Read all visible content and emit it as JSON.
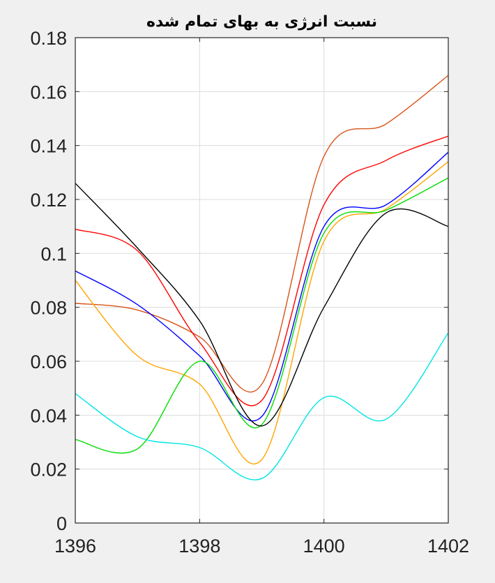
{
  "chart_data": {
    "type": "line",
    "title": "نسبت انرژی به بهای تمام شده",
    "xlabel": "",
    "ylabel": "",
    "xlim": [
      1396,
      1402
    ],
    "ylim": [
      0,
      0.18
    ],
    "x_ticks": [
      1396,
      1398,
      1400,
      1402
    ],
    "y_ticks": [
      0,
      0.02,
      0.04,
      0.06,
      0.08,
      0.1,
      0.12,
      0.14,
      0.16,
      0.18
    ],
    "x_tick_labels": [
      "1396",
      "1398",
      "1400",
      "1402"
    ],
    "y_tick_labels": [
      "0",
      "0.02",
      "0.04",
      "0.06",
      "0.08",
      "0.1",
      "0.12",
      "0.14",
      "0.16",
      "0.18"
    ],
    "grid": true,
    "legend": "none",
    "series": [
      {
        "color": "#d95319",
        "x": [
          1396,
          1397,
          1398,
          1399,
          1400,
          1401,
          1402
        ],
        "y": [
          0.0815,
          0.079,
          0.069,
          0.0515,
          0.136,
          0.148,
          0.166
        ]
      },
      {
        "color": "#ff0000",
        "x": [
          1396,
          1397,
          1398,
          1399,
          1400,
          1401,
          1402
        ],
        "y": [
          0.109,
          0.101,
          0.067,
          0.0455,
          0.118,
          0.1345,
          0.1435
        ]
      },
      {
        "color": "#0000ff",
        "x": [
          1396,
          1397,
          1398,
          1399,
          1400,
          1401,
          1402
        ],
        "y": [
          0.0935,
          0.081,
          0.062,
          0.0395,
          0.11,
          0.118,
          0.1375
        ]
      },
      {
        "color": "#ffa500",
        "x": [
          1396,
          1397,
          1398,
          1399,
          1400,
          1401,
          1402
        ],
        "y": [
          0.09,
          0.062,
          0.0515,
          0.0235,
          0.1045,
          0.1165,
          0.134
        ]
      },
      {
        "color": "#00dd00",
        "x": [
          1396,
          1397,
          1398,
          1399,
          1400,
          1401,
          1402
        ],
        "y": [
          0.031,
          0.0275,
          0.06,
          0.0365,
          0.1075,
          0.116,
          0.128
        ]
      },
      {
        "color": "#000000",
        "x": [
          1396,
          1397,
          1398,
          1399,
          1400,
          1401,
          1402
        ],
        "y": [
          0.126,
          0.102,
          0.075,
          0.036,
          0.08,
          0.115,
          0.11
        ]
      },
      {
        "color": "#00e5e5",
        "x": [
          1396,
          1397,
          1398,
          1399,
          1400,
          1401,
          1402
        ],
        "y": [
          0.048,
          0.032,
          0.028,
          0.0165,
          0.0465,
          0.0385,
          0.0705
        ]
      }
    ]
  }
}
